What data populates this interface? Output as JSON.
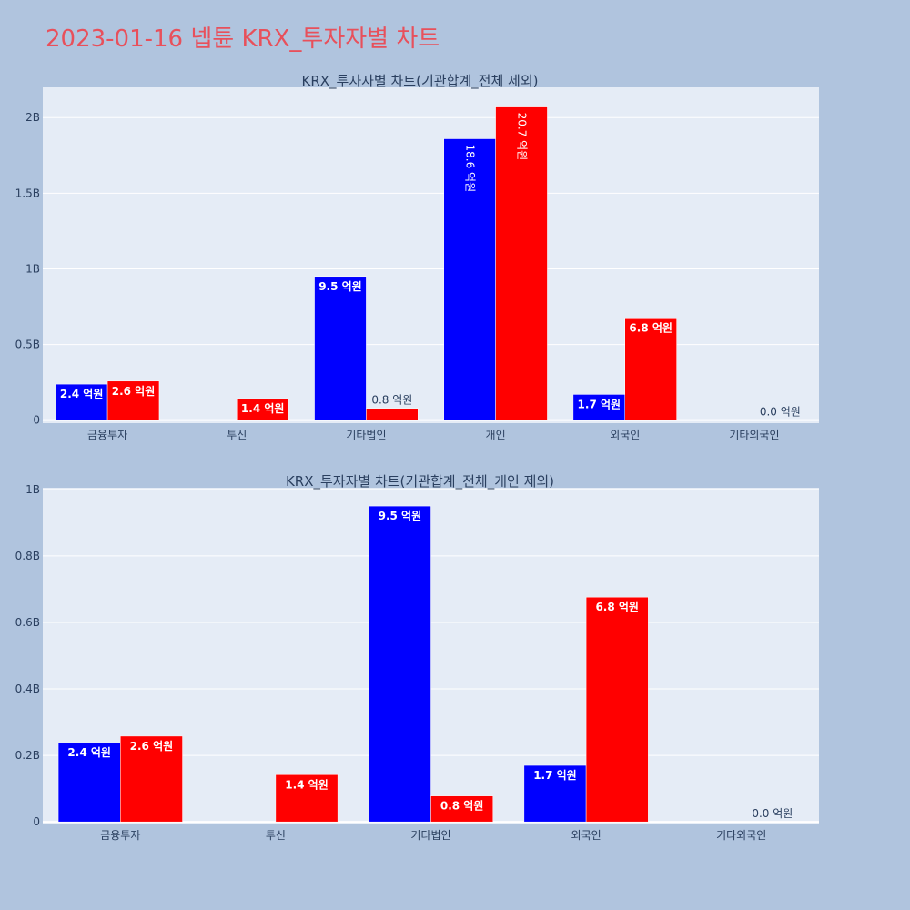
{
  "page_title": "2023-01-16 넵튠 KRX_투자자별 차트",
  "chart_data": [
    {
      "type": "bar",
      "title": "KRX_투자자별 차트(기관합계_전체 제외)",
      "categories": [
        "금융투자",
        "투신",
        "기타법인",
        "개인",
        "외국인",
        "기타외국인"
      ],
      "series": [
        {
          "color": "#0000ff",
          "values": [
            238000000,
            0,
            950000000,
            1860000000,
            170000000,
            0
          ],
          "labels": [
            "2.4 억원",
            "",
            "9.5 억원",
            "18.6 억원",
            "1.7 억원",
            ""
          ]
        },
        {
          "color": "#ff0000",
          "values": [
            258000000,
            142000000,
            78000000,
            2070000000,
            676000000,
            0
          ],
          "labels": [
            "2.6 억원",
            "1.4 억원",
            "0.8 억원",
            "20.7 억원",
            "6.8 억원",
            "0.0 억원"
          ]
        }
      ],
      "ylim": [
        -20000000,
        2200000000
      ],
      "yticks": [
        0,
        500000000,
        1000000000,
        1500000000,
        2000000000
      ],
      "ytick_labels": [
        "0",
        "0.5B",
        "1B",
        "1.5B",
        "2B"
      ],
      "grid": true,
      "background": "#e5ecf6"
    },
    {
      "type": "bar",
      "title": "KRX_투자자별 차트(기관합계_전체_개인 제외)",
      "categories": [
        "금융투자",
        "투신",
        "기타법인",
        "외국인",
        "기타외국인"
      ],
      "series": [
        {
          "color": "#0000ff",
          "values": [
            238000000,
            0,
            950000000,
            170000000,
            0
          ],
          "labels": [
            "2.4 억원",
            "",
            "9.5 억원",
            "1.7 억원",
            ""
          ]
        },
        {
          "color": "#ff0000",
          "values": [
            258000000,
            142000000,
            78000000,
            676000000,
            0
          ],
          "labels": [
            "2.6 억원",
            "1.4 억원",
            "0.8 억원",
            "6.8 억원",
            "0.0 억원"
          ]
        }
      ],
      "ylim": [
        -5000000,
        1005000000
      ],
      "yticks": [
        0,
        200000000,
        400000000,
        600000000,
        800000000,
        1000000000
      ],
      "ytick_labels": [
        "0",
        "0.2B",
        "0.4B",
        "0.6B",
        "0.8B",
        "1B"
      ],
      "grid": true,
      "background": "#e5ecf6"
    }
  ]
}
